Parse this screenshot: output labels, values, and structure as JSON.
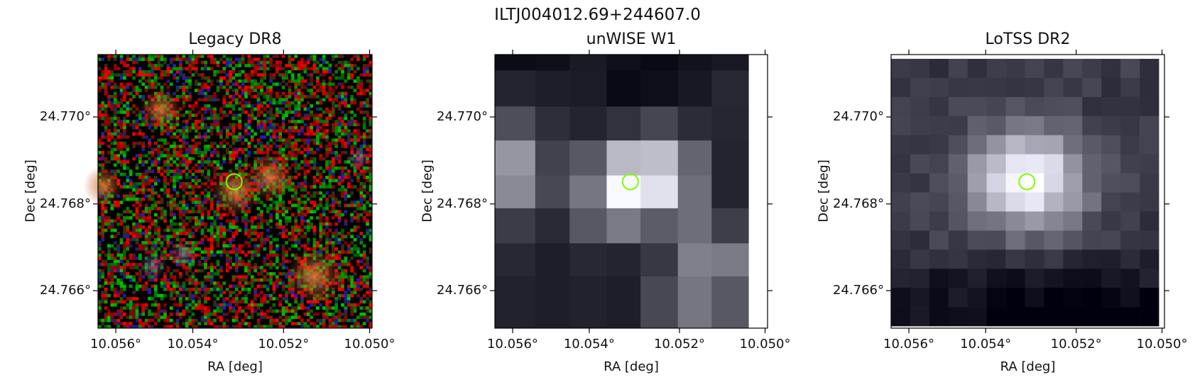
{
  "figure": {
    "title": "ILTJ004012.69+244607.0",
    "marker_color": "#7cfc00"
  },
  "panels": [
    {
      "title": "Legacy DR8",
      "xlabel": "RA [deg]",
      "ylabel": "Dec [deg]",
      "xticks": [
        "10.056°",
        "10.054°",
        "10.052°",
        "10.050°"
      ],
      "yticks": [
        "24.770°",
        "24.768°",
        "24.766°"
      ],
      "image_type": "rgb-noise-optical"
    },
    {
      "title": "unWISE W1",
      "xlabel": "RA [deg]",
      "ylabel": "Dec [deg]",
      "xticks": [
        "10.056°",
        "10.054°",
        "10.052°",
        "10.050°"
      ],
      "yticks": [
        "24.770°",
        "24.768°",
        "24.766°"
      ],
      "image_type": "grayscale-coarse-pixels"
    },
    {
      "title": "LoTSS DR2",
      "xlabel": "RA [deg]",
      "ylabel": "Dec [deg]",
      "xticks": [
        "10.056°",
        "10.054°",
        "10.052°",
        "10.050°"
      ],
      "yticks": [
        "24.770°",
        "24.768°",
        "24.766°"
      ],
      "image_type": "grayscale-radio"
    }
  ]
}
